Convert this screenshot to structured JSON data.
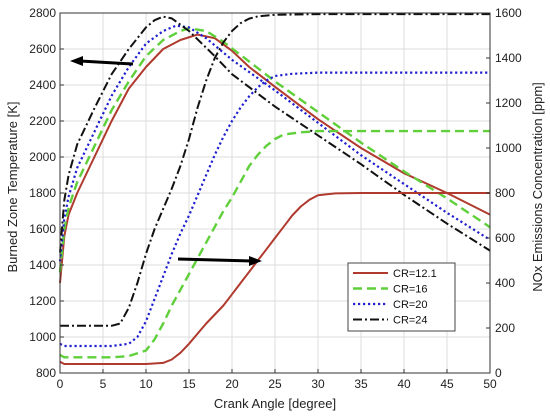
{
  "chart_data": {
    "type": "line",
    "title": "",
    "xlabel": "Crank Angle [degree]",
    "ylabel_left": "Burned Zone Temperature [K]",
    "ylabel_right": "NOx Emissions Concentration [ppm]",
    "xlim": [
      0,
      50
    ],
    "ylim_left": [
      800,
      2800
    ],
    "ylim_right": [
      0,
      1600
    ],
    "x_ticks": [
      0,
      5,
      10,
      15,
      20,
      25,
      30,
      35,
      40,
      45,
      50
    ],
    "y_left_ticks": [
      800,
      1000,
      1200,
      1400,
      1600,
      1800,
      2000,
      2200,
      2400,
      2600,
      2800
    ],
    "y_right_ticks": [
      0,
      200,
      400,
      600,
      800,
      1000,
      1200,
      1400,
      1600
    ],
    "grid": true,
    "legend_position": "bottom-right",
    "colors": {
      "CR=12.1": "#b03a2e",
      "CR=16": "#5fd03a",
      "CR=20": "#1f1fd0",
      "CR=24": "#111111"
    },
    "series": [
      {
        "name": "CR=12.1",
        "axis": "left",
        "quantity": "temperature",
        "points": [
          [
            0,
            1300
          ],
          [
            0.5,
            1560
          ],
          [
            1,
            1680
          ],
          [
            2,
            1800
          ],
          [
            4,
            2000
          ],
          [
            6,
            2200
          ],
          [
            8,
            2380
          ],
          [
            10,
            2500
          ],
          [
            12,
            2600
          ],
          [
            14,
            2650
          ],
          [
            16,
            2680
          ],
          [
            18,
            2660
          ],
          [
            20,
            2590
          ],
          [
            22,
            2500
          ],
          [
            25,
            2390
          ],
          [
            30,
            2210
          ],
          [
            35,
            2050
          ],
          [
            40,
            1910
          ],
          [
            45,
            1800
          ],
          [
            50,
            1680
          ]
        ]
      },
      {
        "name": "CR=16",
        "axis": "left",
        "quantity": "temperature",
        "points": [
          [
            0,
            1360
          ],
          [
            0.5,
            1600
          ],
          [
            1,
            1720
          ],
          [
            2,
            1860
          ],
          [
            4,
            2060
          ],
          [
            6,
            2260
          ],
          [
            8,
            2420
          ],
          [
            10,
            2560
          ],
          [
            12,
            2650
          ],
          [
            14,
            2700
          ],
          [
            15,
            2715
          ],
          [
            17,
            2700
          ],
          [
            19,
            2640
          ],
          [
            22,
            2530
          ],
          [
            25,
            2420
          ],
          [
            30,
            2250
          ],
          [
            35,
            2080
          ],
          [
            40,
            1920
          ],
          [
            45,
            1770
          ],
          [
            50,
            1610
          ]
        ]
      },
      {
        "name": "CR=20",
        "axis": "left",
        "quantity": "temperature",
        "points": [
          [
            0,
            1420
          ],
          [
            0.5,
            1660
          ],
          [
            1,
            1780
          ],
          [
            2,
            1940
          ],
          [
            4,
            2140
          ],
          [
            6,
            2340
          ],
          [
            8,
            2500
          ],
          [
            10,
            2630
          ],
          [
            12,
            2700
          ],
          [
            13.5,
            2730
          ],
          [
            15,
            2720
          ],
          [
            17,
            2660
          ],
          [
            20,
            2540
          ],
          [
            25,
            2370
          ],
          [
            30,
            2190
          ],
          [
            35,
            2010
          ],
          [
            40,
            1850
          ],
          [
            45,
            1690
          ],
          [
            50,
            1540
          ]
        ]
      },
      {
        "name": "CR=24",
        "axis": "left",
        "quantity": "temperature",
        "points": [
          [
            0,
            1470
          ],
          [
            0.5,
            1760
          ],
          [
            1,
            1900
          ],
          [
            2,
            2070
          ],
          [
            4,
            2270
          ],
          [
            6,
            2460
          ],
          [
            8,
            2600
          ],
          [
            10,
            2720
          ],
          [
            11,
            2760
          ],
          [
            12,
            2780
          ],
          [
            13,
            2770
          ],
          [
            15,
            2700
          ],
          [
            18,
            2560
          ],
          [
            20,
            2460
          ],
          [
            25,
            2280
          ],
          [
            30,
            2120
          ],
          [
            35,
            1960
          ],
          [
            40,
            1790
          ],
          [
            45,
            1630
          ],
          [
            50,
            1480
          ]
        ]
      },
      {
        "name": "CR=12.1",
        "axis": "right",
        "quantity": "NOx",
        "points": [
          [
            0,
            50
          ],
          [
            0.5,
            40
          ],
          [
            2,
            40
          ],
          [
            6,
            40
          ],
          [
            10,
            40
          ],
          [
            12,
            45
          ],
          [
            13,
            60
          ],
          [
            14,
            90
          ],
          [
            15,
            130
          ],
          [
            16,
            175
          ],
          [
            17,
            220
          ],
          [
            18,
            260
          ],
          [
            19,
            300
          ],
          [
            20,
            350
          ],
          [
            21,
            400
          ],
          [
            22,
            450
          ],
          [
            23,
            500
          ],
          [
            24,
            550
          ],
          [
            25,
            600
          ],
          [
            26,
            650
          ],
          [
            27,
            700
          ],
          [
            28,
            740
          ],
          [
            29,
            770
          ],
          [
            30,
            790
          ],
          [
            32,
            798
          ],
          [
            35,
            800
          ],
          [
            40,
            800
          ],
          [
            45,
            800
          ],
          [
            50,
            800
          ]
        ]
      },
      {
        "name": "CR=16",
        "axis": "right",
        "quantity": "NOx",
        "points": [
          [
            0,
            80
          ],
          [
            0.5,
            70
          ],
          [
            2,
            70
          ],
          [
            6,
            70
          ],
          [
            8,
            75
          ],
          [
            10,
            100
          ],
          [
            11,
            150
          ],
          [
            12,
            220
          ],
          [
            13,
            300
          ],
          [
            14,
            370
          ],
          [
            15,
            440
          ],
          [
            16,
            510
          ],
          [
            17,
            580
          ],
          [
            18,
            650
          ],
          [
            19,
            720
          ],
          [
            20,
            780
          ],
          [
            21,
            850
          ],
          [
            22,
            920
          ],
          [
            23,
            970
          ],
          [
            24,
            1010
          ],
          [
            25,
            1040
          ],
          [
            26,
            1060
          ],
          [
            28,
            1070
          ],
          [
            30,
            1075
          ],
          [
            35,
            1075
          ],
          [
            40,
            1075
          ],
          [
            45,
            1075
          ],
          [
            50,
            1075
          ]
        ]
      },
      {
        "name": "CR=20",
        "axis": "right",
        "quantity": "NOx",
        "points": [
          [
            0,
            130
          ],
          [
            0.5,
            120
          ],
          [
            2,
            120
          ],
          [
            6,
            120
          ],
          [
            8,
            130
          ],
          [
            9,
            160
          ],
          [
            10,
            230
          ],
          [
            11,
            330
          ],
          [
            12,
            430
          ],
          [
            13,
            530
          ],
          [
            14,
            620
          ],
          [
            15,
            700
          ],
          [
            16,
            790
          ],
          [
            17,
            880
          ],
          [
            18,
            970
          ],
          [
            19,
            1050
          ],
          [
            20,
            1120
          ],
          [
            21,
            1180
          ],
          [
            22,
            1230
          ],
          [
            23,
            1270
          ],
          [
            24,
            1300
          ],
          [
            25,
            1320
          ],
          [
            27,
            1330
          ],
          [
            30,
            1335
          ],
          [
            35,
            1335
          ],
          [
            40,
            1335
          ],
          [
            45,
            1335
          ],
          [
            50,
            1335
          ]
        ]
      },
      {
        "name": "CR=24",
        "axis": "right",
        "quantity": "NOx",
        "points": [
          [
            0,
            210
          ],
          [
            0.5,
            210
          ],
          [
            2,
            210
          ],
          [
            5,
            210
          ],
          [
            6,
            210
          ],
          [
            7,
            220
          ],
          [
            8,
            290
          ],
          [
            9,
            400
          ],
          [
            10,
            530
          ],
          [
            11,
            640
          ],
          [
            12,
            730
          ],
          [
            13,
            820
          ],
          [
            14,
            920
          ],
          [
            15,
            1040
          ],
          [
            16,
            1180
          ],
          [
            17,
            1300
          ],
          [
            18,
            1400
          ],
          [
            19,
            1470
          ],
          [
            20,
            1520
          ],
          [
            21,
            1555
          ],
          [
            22,
            1575
          ],
          [
            23,
            1585
          ],
          [
            25,
            1592
          ],
          [
            30,
            1595
          ],
          [
            35,
            1595
          ],
          [
            40,
            1595
          ],
          [
            45,
            1595
          ],
          [
            50,
            1595
          ]
        ]
      }
    ],
    "annotations": [
      {
        "type": "arrow",
        "direction": "left",
        "points_to": "left-axis"
      },
      {
        "type": "arrow",
        "direction": "right",
        "points_to": "right-axis"
      }
    ]
  }
}
